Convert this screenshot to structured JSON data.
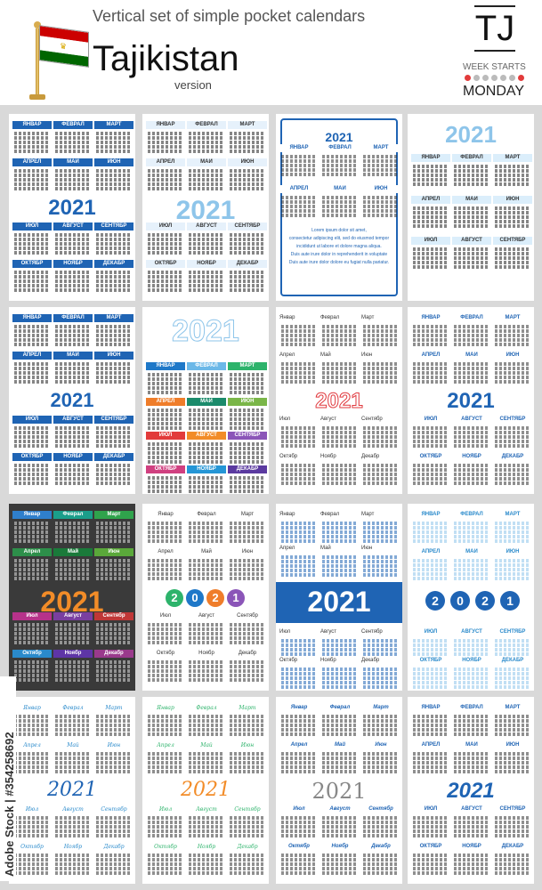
{
  "header": {
    "subtitle": "Vertical  set of simple pocket calendars",
    "country": "Tajikistan",
    "version": "version",
    "code": "TJ",
    "week_starts": "WEEK STARTS",
    "weekday": "MONDAY"
  },
  "year": "2021",
  "months_caps": [
    "ЯНВАР",
    "ФЕВРАЛ",
    "МАРТ",
    "АПРЕЛ",
    "МАЙ",
    "ИЮН",
    "ИЮЛ",
    "АВГУСТ",
    "СЕНТЯБР",
    "ОКТЯБР",
    "НОЯБР",
    "ДЕКАБР"
  ],
  "months_title": [
    "Январ",
    "Феврал",
    "Март",
    "Апрел",
    "Май",
    "Июн",
    "Июл",
    "Август",
    "Сентябр",
    "Октябр",
    "Ноябр",
    "Декабр"
  ],
  "lorem": [
    "Lorem ipsum dolor sit amet,",
    "consectetur adipiscing elit, sed do eiusmod tempor",
    "incididunt ut labore et dolore magna aliqua.",
    "Duis aute irure dolor in reprehenderit in voluptate",
    "Duis aute irure dolor dolore eu fugiat nulla pariatur."
  ],
  "watermark": "Adobe Stock | #354258692",
  "colors": {
    "blue": "#1f64b4",
    "light_blue": "#8ec5ea",
    "red": "#e0393e",
    "dark": "#3a3a3a",
    "orange": "#f28c28"
  }
}
